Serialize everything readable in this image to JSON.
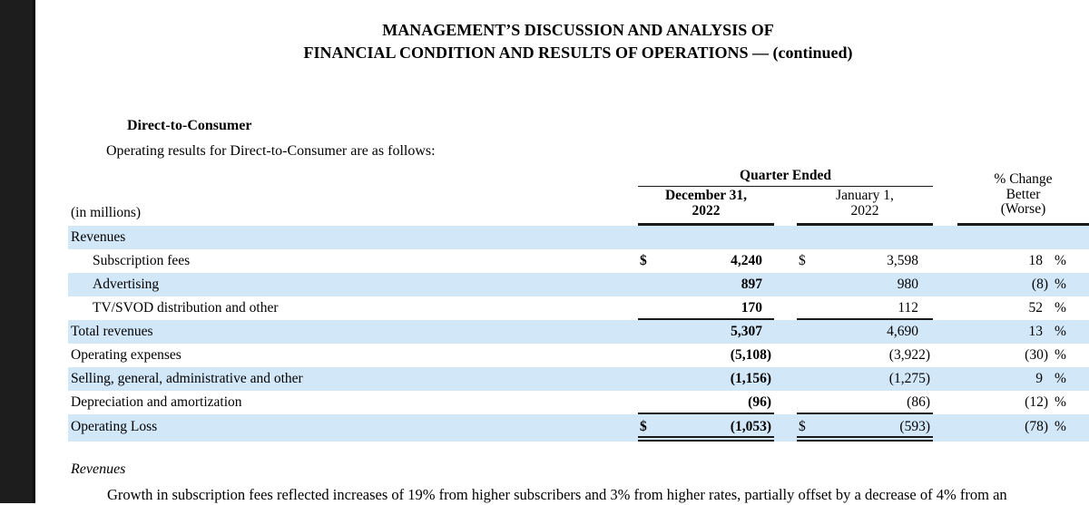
{
  "page": {
    "title_line1": "MANAGEMENT’S DISCUSSION AND ANALYSIS OF",
    "title_line2": "FINANCIAL CONDITION AND RESULTS OF OPERATIONS — (continued)",
    "section_heading": "Direct-to-Consumer",
    "intro_line": "Operating results for Direct-to-Consumer are as follows:"
  },
  "table": {
    "units_label": "(in millions)",
    "col_group_header": "Quarter Ended",
    "col1_header_line1": "December 31,",
    "col1_header_line2": "2022",
    "col2_header_line1": "January 1,",
    "col2_header_line2": "2022",
    "col3_header_line1": "% Change",
    "col3_header_line2": "Better",
    "col3_header_line3": "(Worse)",
    "pct_suffix": "%",
    "rows": [
      {
        "label": "Revenues",
        "indent": false,
        "shade": true,
        "d1": "",
        "v1": "",
        "d2": "",
        "v2": "",
        "pct": "",
        "rule": "none"
      },
      {
        "label": "Subscription fees",
        "indent": true,
        "shade": false,
        "d1": "$",
        "v1": "4,240",
        "d2": "$",
        "v2": "3,598",
        "pct": "18",
        "rule": "none"
      },
      {
        "label": "Advertising",
        "indent": true,
        "shade": true,
        "d1": "",
        "v1": "897",
        "d2": "",
        "v2": "980",
        "pct": "(8)",
        "rule": "none"
      },
      {
        "label": "TV/SVOD distribution and other",
        "indent": true,
        "shade": false,
        "d1": "",
        "v1": "170",
        "d2": "",
        "v2": "112",
        "pct": "52",
        "rule": "single"
      },
      {
        "label": "Total revenues",
        "indent": false,
        "shade": true,
        "d1": "",
        "v1": "5,307",
        "d2": "",
        "v2": "4,690",
        "pct": "13",
        "rule": "none"
      },
      {
        "label": "Operating expenses",
        "indent": false,
        "shade": false,
        "d1": "",
        "v1": "(5,108)",
        "d2": "",
        "v2": "(3,922)",
        "pct": "(30)",
        "rule": "none"
      },
      {
        "label": "Selling, general, administrative and other",
        "indent": false,
        "shade": true,
        "d1": "",
        "v1": "(1,156)",
        "d2": "",
        "v2": "(1,275)",
        "pct": "9",
        "rule": "none"
      },
      {
        "label": "Depreciation and amortization",
        "indent": false,
        "shade": false,
        "d1": "",
        "v1": "(96)",
        "d2": "",
        "v2": "(86)",
        "pct": "(12)",
        "rule": "single"
      },
      {
        "label": "Operating Loss",
        "indent": false,
        "shade": true,
        "d1": "$",
        "v1": "(1,053)",
        "d2": "$",
        "v2": "(593)",
        "pct": "(78)",
        "rule": "double",
        "tall": true
      }
    ]
  },
  "footer": {
    "subheading": "Revenues",
    "paragraph": "Growth in subscription fees reflected increases of 19% from higher subscribers and 3% from higher rates, partially offset by a decrease of 4% from an"
  },
  "colors": {
    "row_shade": "#d2e8f9",
    "rule_color": "#1a1a1a",
    "sidebar": "#1d1d1d"
  }
}
